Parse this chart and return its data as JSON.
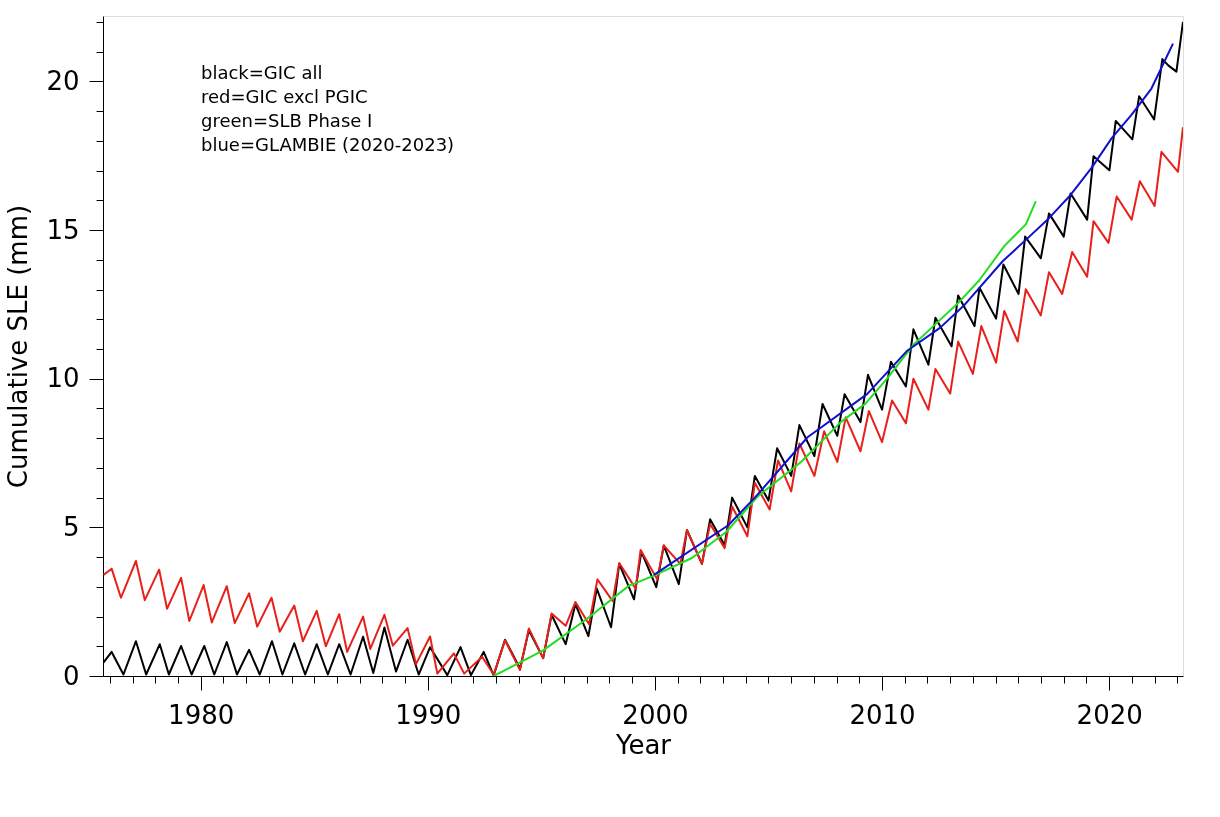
{
  "chart_data": {
    "type": "line",
    "xlabel": "Year",
    "ylabel": "Cumulative SLE (mm)",
    "annotations": [
      "black=GIC all",
      "red=GIC excl PGIC",
      "green=SLB Phase I",
      "blue=GLAMBIE (2020-2023)"
    ],
    "xlim": [
      1975.7,
      2023.25
    ],
    "ylim": [
      0,
      22.2
    ],
    "xticks": [
      {
        "value": 1976,
        "label": null
      },
      {
        "value": 1977,
        "label": null
      },
      {
        "value": 1978,
        "label": null
      },
      {
        "value": 1979,
        "label": null
      },
      1980,
      {
        "value": 1981,
        "label": null
      },
      {
        "value": 1982,
        "label": null
      },
      {
        "value": 1983,
        "label": null
      },
      {
        "value": 1984,
        "label": null
      },
      {
        "value": 1985,
        "label": null
      },
      {
        "value": 1986,
        "label": null
      },
      {
        "value": 1987,
        "label": null
      },
      {
        "value": 1988,
        "label": null
      },
      {
        "value": 1989,
        "label": null
      },
      1990,
      {
        "value": 1991,
        "label": null
      },
      {
        "value": 1992,
        "label": null
      },
      {
        "value": 1993,
        "label": null
      },
      {
        "value": 1994,
        "label": null
      },
      {
        "value": 1995,
        "label": null
      },
      {
        "value": 1996,
        "label": null
      },
      {
        "value": 1997,
        "label": null
      },
      {
        "value": 1998,
        "label": null
      },
      {
        "value": 1999,
        "label": null
      },
      2000,
      {
        "value": 2001,
        "label": null
      },
      {
        "value": 2002,
        "label": null
      },
      {
        "value": 2003,
        "label": null
      },
      {
        "value": 2004,
        "label": null
      },
      {
        "value": 2005,
        "label": null
      },
      {
        "value": 2006,
        "label": null
      },
      {
        "value": 2007,
        "label": null
      },
      {
        "value": 2008,
        "label": null
      },
      {
        "value": 2009,
        "label": null
      },
      2010,
      {
        "value": 2011,
        "label": null
      },
      {
        "value": 2012,
        "label": null
      },
      {
        "value": 2013,
        "label": null
      },
      {
        "value": 2014,
        "label": null
      },
      {
        "value": 2015,
        "label": null
      },
      {
        "value": 2016,
        "label": null
      },
      {
        "value": 2017,
        "label": null
      },
      {
        "value": 2018,
        "label": null
      },
      {
        "value": 2019,
        "label": null
      },
      2020,
      {
        "value": 2021,
        "label": null
      },
      {
        "value": 2022,
        "label": null
      },
      {
        "value": 2023,
        "label": null
      }
    ],
    "yticks": [
      0,
      {
        "value": 1,
        "label": null
      },
      {
        "value": 2,
        "label": null
      },
      {
        "value": 3,
        "label": null
      },
      {
        "value": 4,
        "label": null
      },
      5,
      {
        "value": 6,
        "label": null
      },
      {
        "value": 7,
        "label": null
      },
      {
        "value": 8,
        "label": null
      },
      {
        "value": 9,
        "label": null
      },
      10,
      {
        "value": 11,
        "label": null
      },
      {
        "value": 12,
        "label": null
      },
      {
        "value": 13,
        "label": null
      },
      {
        "value": 14,
        "label": null
      },
      15,
      {
        "value": 16,
        "label": null
      },
      {
        "value": 17,
        "label": null
      },
      {
        "value": 18,
        "label": null
      },
      {
        "value": 19,
        "label": null
      },
      20,
      {
        "value": 21,
        "label": null
      },
      {
        "value": 22,
        "label": null
      }
    ],
    "grid": false,
    "marker": "none",
    "line_style": "solid",
    "series": [
      {
        "color": "#000000",
        "x": [
          1975.72,
          1976.08,
          1976.6,
          1977.15,
          1977.6,
          1978.2,
          1978.6,
          1979.14,
          1979.6,
          1980.16,
          1980.6,
          1981.15,
          1981.6,
          1982.13,
          1982.6,
          1983.14,
          1983.6,
          1984.12,
          1984.6,
          1985.11,
          1985.6,
          1986.1,
          1986.6,
          1987.15,
          1987.6,
          1988.09,
          1988.6,
          1989.11,
          1989.6,
          1990.1,
          1990.86,
          1991.44,
          1991.9,
          1992.46,
          1992.9,
          1993.4,
          1994.06,
          1994.45,
          1995.08,
          1995.45,
          1996.07,
          1996.5,
          1997.07,
          1997.44,
          1998.07,
          1998.43,
          1999.08,
          1999.4,
          2000.06,
          2000.39,
          2001.05,
          2001.41,
          2002.07,
          2002.43,
          2003.07,
          2003.4,
          2004.07,
          2004.4,
          2005.0,
          2005.38,
          2006.0,
          2006.36,
          2007.02,
          2007.38,
          2008.03,
          2008.35,
          2009.05,
          2009.38,
          2010.0,
          2010.39,
          2011.05,
          2011.38,
          2012.04,
          2012.35,
          2013.06,
          2013.35,
          2014.07,
          2014.29,
          2015.02,
          2015.34,
          2016.01,
          2016.3,
          2016.99,
          2017.35,
          2018.0,
          2018.3,
          2019.03,
          2019.31,
          2020.01,
          2020.29,
          2021.02,
          2021.32,
          2021.98,
          2022.34,
          2022.6,
          2022.96,
          2023.25
        ],
        "values": [
          0.45,
          0.81,
          0.05,
          1.17,
          0.05,
          1.07,
          0.05,
          1.01,
          0.05,
          1.01,
          0.05,
          1.14,
          0.05,
          0.88,
          0.05,
          1.17,
          0.05,
          1.1,
          0.05,
          1.07,
          0.05,
          1.07,
          0.05,
          1.32,
          0.1,
          1.63,
          0.15,
          1.22,
          0.05,
          0.97,
          0.03,
          0.97,
          0.03,
          0.81,
          0.02,
          1.22,
          0.25,
          1.54,
          0.6,
          2.06,
          1.07,
          2.42,
          1.34,
          2.94,
          1.64,
          3.77,
          2.58,
          4.18,
          2.99,
          4.39,
          3.09,
          4.91,
          3.77,
          5.27,
          4.4,
          6.0,
          5.0,
          6.73,
          5.9,
          7.66,
          6.73,
          8.44,
          7.4,
          9.15,
          8.08,
          9.48,
          8.54,
          10.13,
          8.96,
          10.57,
          9.74,
          11.66,
          10.47,
          12.05,
          11.09,
          12.8,
          11.77,
          13.06,
          12.02,
          13.84,
          12.85,
          14.78,
          14.05,
          15.56,
          14.78,
          16.23,
          15.35,
          17.48,
          17.01,
          18.67,
          18.05,
          19.5,
          18.72,
          20.75,
          20.54,
          20.33,
          22.0
        ]
      },
      {
        "color": "#e8201a",
        "x": [
          1975.72,
          1976.08,
          1976.49,
          1977.15,
          1977.54,
          1978.17,
          1978.52,
          1979.14,
          1979.5,
          1980.13,
          1980.49,
          1981.15,
          1981.5,
          1982.13,
          1982.49,
          1983.12,
          1983.48,
          1984.12,
          1984.5,
          1985.11,
          1985.51,
          1986.1,
          1986.45,
          1987.15,
          1987.47,
          1988.09,
          1988.46,
          1989.11,
          1989.48,
          1990.1,
          1990.42,
          1991.15,
          1991.6,
          1992.39,
          1992.9,
          1993.4,
          1994.06,
          1994.45,
          1995.08,
          1995.45,
          1996.07,
          1996.5,
          1997.1,
          1997.47,
          1998.14,
          1998.43,
          1999.15,
          1999.37,
          2000.1,
          2000.39,
          2001.12,
          2001.41,
          2002.07,
          2002.43,
          2003.07,
          2003.4,
          2004.07,
          2004.4,
          2005.05,
          2005.42,
          2006.0,
          2006.36,
          2007.02,
          2007.45,
          2008.03,
          2008.4,
          2009.05,
          2009.42,
          2010.0,
          2010.44,
          2011.05,
          2011.38,
          2012.04,
          2012.35,
          2013.0,
          2013.35,
          2014.0,
          2014.37,
          2015.02,
          2015.38,
          2015.97,
          2016.33,
          2016.99,
          2017.35,
          2017.93,
          2018.37,
          2019.03,
          2019.31,
          2019.97,
          2020.33,
          2020.99,
          2021.35,
          2022.0,
          2022.3,
          2023.03,
          2023.25
        ],
        "values": [
          3.4,
          3.61,
          2.63,
          3.87,
          2.55,
          3.58,
          2.26,
          3.3,
          1.85,
          3.06,
          1.8,
          3.02,
          1.78,
          2.78,
          1.66,
          2.63,
          1.49,
          2.37,
          1.17,
          2.19,
          1.0,
          2.08,
          0.81,
          2.0,
          0.91,
          2.06,
          1.02,
          1.61,
          0.4,
          1.33,
          0.08,
          0.76,
          0.08,
          0.65,
          0.05,
          1.2,
          0.2,
          1.6,
          0.6,
          2.1,
          1.69,
          2.49,
          1.74,
          3.25,
          2.52,
          3.8,
          2.94,
          4.24,
          3.25,
          4.39,
          3.77,
          4.91,
          3.77,
          5.11,
          4.3,
          5.7,
          4.7,
          6.5,
          5.6,
          7.25,
          6.21,
          7.82,
          6.73,
          8.23,
          7.2,
          8.7,
          7.56,
          8.91,
          7.87,
          9.27,
          8.5,
          10.0,
          8.96,
          10.33,
          9.5,
          11.25,
          10.16,
          11.77,
          10.54,
          12.28,
          11.25,
          13.01,
          12.13,
          13.58,
          12.85,
          14.26,
          13.43,
          15.3,
          14.57,
          16.13,
          15.35,
          16.64,
          15.81,
          17.63,
          16.96,
          18.46
        ]
      },
      {
        "color": "#22dd22",
        "x": [
          1992.9,
          1995.08,
          1996.97,
          1998.86,
          1999.88,
          2001.63,
          2003.16,
          2004.54,
          2006.43,
          2008.18,
          2009.27,
          2010.22,
          2011.38,
          2012.4,
          2013.42,
          2014.29,
          2015.38,
          2016.33,
          2016.77
        ],
        "values": [
          0,
          0.86,
          1.9,
          3.04,
          3.35,
          3.97,
          4.86,
          6.05,
          7.2,
          8.54,
          9.16,
          10.0,
          11.14,
          11.87,
          12.6,
          13.32,
          14.46,
          15.19,
          15.97
        ]
      },
      {
        "color": "#1010cc",
        "x": [
          1999.96,
          2003.23,
          2004.4,
          2006.72,
          2009.34,
          2011.09,
          2012.55,
          2013.64,
          2015.31,
          2016.33,
          2017.35,
          2018.3,
          2019.24,
          2020.12,
          2020.99,
          2021.86,
          2022.81
        ],
        "values": [
          3.4,
          5.07,
          6.0,
          8.03,
          9.48,
          10.93,
          11.71,
          12.49,
          13.95,
          14.67,
          15.4,
          16.18,
          17.11,
          18.1,
          18.88,
          19.76,
          21.27
        ]
      }
    ]
  }
}
